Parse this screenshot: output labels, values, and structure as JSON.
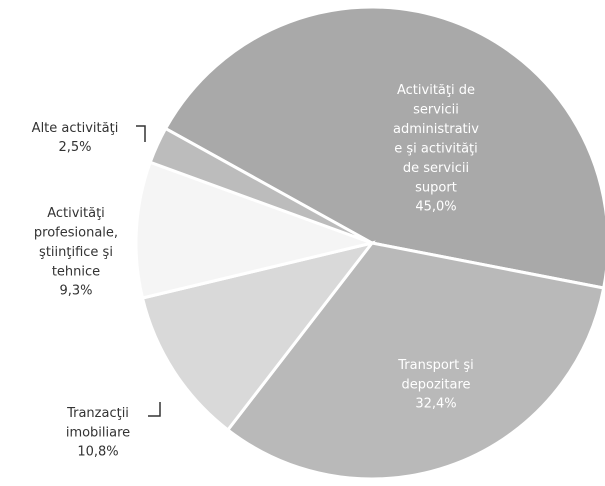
{
  "chart_data": {
    "type": "pie",
    "categories": [
      "Activităţi de\nservicii\nadministrativ\ne şi activităţi\nde servicii\nsuport",
      "Transport şi\ndepozitare",
      "Tranzacţii\nimobiliare",
      "Activităţi\nprofesionale,\nştiinţifice şi\ntehnice",
      "Alte activităţi"
    ],
    "values": [
      45.0,
      32.4,
      10.8,
      9.3,
      2.5
    ],
    "value_labels": [
      "45,0%",
      "32,4%",
      "10,8%",
      "9,3%",
      "2,5%"
    ],
    "colors": [
      "#a9a9a9",
      "#b9b9b9",
      "#d9d9d9",
      "#f5f5f5",
      "#bcbcbc"
    ]
  }
}
